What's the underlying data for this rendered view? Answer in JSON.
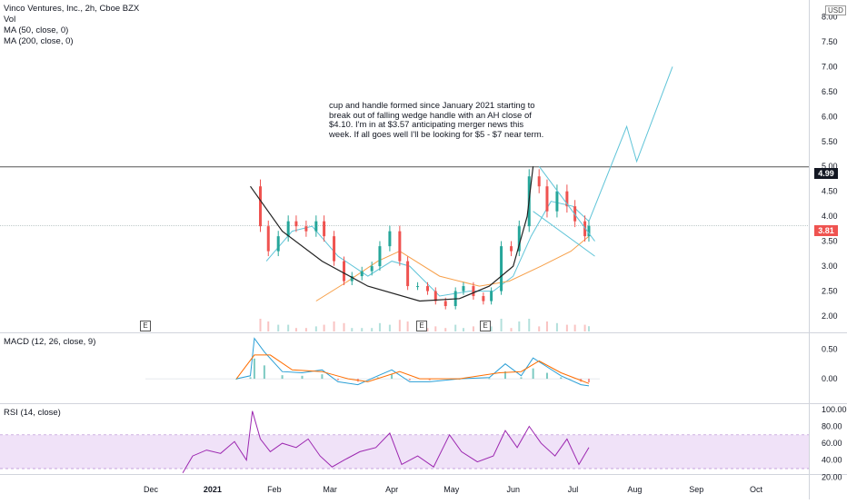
{
  "header": {
    "title": "Vinco Ventures, Inc., 2h, Cboe BZX",
    "vol_label": "Vol",
    "ma50_label": "MA (50, close, 0)",
    "ma200_label": "MA (200, close, 0)",
    "currency": "USD"
  },
  "annotation": {
    "text": "cup and handle formed since January 2021 starting to break out of falling wedge handle with an AH close of $4.10. I'm in at $3.57 anticipating merger news this week. If all goes well I'll be looking for $5 - $7 near term."
  },
  "earnings_flag": "E",
  "price_tags": {
    "resistance": "4.99",
    "current": "3.81"
  },
  "macd": {
    "label": "MACD (12, 26, close, 9)"
  },
  "rsi": {
    "label": "RSI (14, close)"
  },
  "colors": {
    "candle_up": "#26a69a",
    "candle_down": "#ef5350",
    "ma50": "#5fc4d8",
    "ma200": "#f7a04a",
    "cup": "#222222",
    "projection": "#5fc4d8",
    "macd_line": "#2a9fd6",
    "signal_line": "#ff6d00",
    "rsi_line": "#9c27b0",
    "rsi_band": "#e9d5f5"
  },
  "chart_data": [
    {
      "type": "candlestick",
      "title": "Vinco Ventures, Inc., 2h, Cboe BZX",
      "x_tick_labels": [
        "Dec",
        "2021",
        "Feb",
        "Mar",
        "Apr",
        "May",
        "Jun",
        "Jul",
        "Aug",
        "Sep",
        "Oct"
      ],
      "y_tick_labels": [
        "2.00",
        "2.50",
        "3.00",
        "3.50",
        "4.00",
        "4.50",
        "5.00",
        "5.50",
        "6.00",
        "6.50",
        "7.00",
        "7.50",
        "8.00"
      ],
      "ylim": [
        1.8,
        8.3
      ],
      "horizontal_lines": [
        4.99,
        3.81
      ],
      "earnings_dates": [
        "2020-12-16",
        "2021-04-01",
        "2021-05-27"
      ],
      "close_series": [
        [
          "2021-01-20",
          4.6
        ],
        [
          "2021-01-25",
          3.8
        ],
        [
          "2021-01-29",
          3.3
        ],
        [
          "2021-02-03",
          3.6
        ],
        [
          "2021-02-08",
          3.9
        ],
        [
          "2021-02-12",
          3.8
        ],
        [
          "2021-02-17",
          3.7
        ],
        [
          "2021-02-22",
          3.9
        ],
        [
          "2021-02-26",
          3.6
        ],
        [
          "2021-03-03",
          3.1
        ],
        [
          "2021-03-08",
          2.7
        ],
        [
          "2021-03-12",
          2.8
        ],
        [
          "2021-03-17",
          2.9
        ],
        [
          "2021-03-22",
          3.0
        ],
        [
          "2021-03-26",
          3.4
        ],
        [
          "2021-03-31",
          3.7
        ],
        [
          "2021-04-05",
          3.1
        ],
        [
          "2021-04-09",
          2.6
        ],
        [
          "2021-04-14",
          2.6
        ],
        [
          "2021-04-19",
          2.5
        ],
        [
          "2021-04-23",
          2.3
        ],
        [
          "2021-04-28",
          2.2
        ],
        [
          "2021-05-03",
          2.5
        ],
        [
          "2021-05-07",
          2.6
        ],
        [
          "2021-05-12",
          2.4
        ],
        [
          "2021-05-17",
          2.3
        ],
        [
          "2021-05-21",
          2.5
        ],
        [
          "2021-05-26",
          3.4
        ],
        [
          "2021-05-31",
          3.3
        ],
        [
          "2021-06-04",
          3.8
        ],
        [
          "2021-06-09",
          4.8
        ],
        [
          "2021-06-14",
          4.6
        ],
        [
          "2021-06-18",
          4.1
        ],
        [
          "2021-06-23",
          4.5
        ],
        [
          "2021-06-28",
          4.2
        ],
        [
          "2021-07-02",
          3.9
        ],
        [
          "2021-07-07",
          3.6
        ],
        [
          "2021-07-09",
          3.81
        ]
      ],
      "ma50": [
        [
          "2021-01-28",
          3.1
        ],
        [
          "2021-02-10",
          3.7
        ],
        [
          "2021-02-20",
          3.8
        ],
        [
          "2021-03-05",
          3.2
        ],
        [
          "2021-03-20",
          2.8
        ],
        [
          "2021-04-01",
          3.1
        ],
        [
          "2021-04-10",
          3.0
        ],
        [
          "2021-04-25",
          2.4
        ],
        [
          "2021-05-10",
          2.5
        ],
        [
          "2021-05-22",
          2.5
        ],
        [
          "2021-06-01",
          2.8
        ],
        [
          "2021-06-10",
          3.6
        ],
        [
          "2021-06-20",
          4.3
        ],
        [
          "2021-07-01",
          4.2
        ],
        [
          "2021-07-09",
          3.9
        ]
      ],
      "ma200": [
        [
          "2021-02-22",
          2.3
        ],
        [
          "2021-03-10",
          2.7
        ],
        [
          "2021-03-25",
          3.1
        ],
        [
          "2021-04-05",
          3.3
        ],
        [
          "2021-04-25",
          2.8
        ],
        [
          "2021-05-15",
          2.6
        ],
        [
          "2021-05-30",
          2.7
        ],
        [
          "2021-06-15",
          3.0
        ],
        [
          "2021-06-30",
          3.3
        ],
        [
          "2021-07-09",
          3.6
        ]
      ],
      "cup_curve": [
        [
          "2021-01-20",
          4.6
        ],
        [
          "2021-02-05",
          3.7
        ],
        [
          "2021-02-25",
          3.1
        ],
        [
          "2021-03-20",
          2.6
        ],
        [
          "2021-04-15",
          2.3
        ],
        [
          "2021-05-05",
          2.35
        ],
        [
          "2021-05-20",
          2.6
        ],
        [
          "2021-06-01",
          3.0
        ],
        [
          "2021-06-08",
          4.0
        ],
        [
          "2021-06-11",
          5.0
        ]
      ],
      "wedge_upper": [
        [
          "2021-06-14",
          5.0
        ],
        [
          "2021-07-12",
          3.5
        ]
      ],
      "wedge_lower": [
        [
          "2021-06-11",
          4.1
        ],
        [
          "2021-07-12",
          3.2
        ]
      ],
      "projection_path": [
        [
          "2021-07-09",
          3.9
        ],
        [
          "2021-07-28",
          5.8
        ],
        [
          "2021-08-02",
          5.1
        ],
        [
          "2021-08-20",
          7.0
        ]
      ]
    },
    {
      "type": "line",
      "title": "MACD (12, 26, close, 9)",
      "y_tick_labels": [
        "0.00",
        "0.50"
      ],
      "ylim": [
        -0.35,
        0.75
      ],
      "series": [
        {
          "values": [
            [
              "2021-01-13",
              0.0
            ],
            [
              "2021-01-20",
              0.05
            ],
            [
              "2021-01-22",
              0.68
            ],
            [
              "2021-01-27",
              0.45
            ],
            [
              "2021-02-05",
              0.12
            ],
            [
              "2021-02-15",
              0.1
            ],
            [
              "2021-02-25",
              0.15
            ],
            [
              "2021-03-05",
              -0.05
            ],
            [
              "2021-03-15",
              -0.1
            ],
            [
              "2021-03-25",
              0.05
            ],
            [
              "2021-04-01",
              0.15
            ],
            [
              "2021-04-10",
              -0.05
            ],
            [
              "2021-04-20",
              -0.05
            ],
            [
              "2021-05-05",
              0.0
            ],
            [
              "2021-05-20",
              0.02
            ],
            [
              "2021-05-28",
              0.25
            ],
            [
              "2021-06-05",
              0.05
            ],
            [
              "2021-06-11",
              0.35
            ],
            [
              "2021-06-18",
              0.2
            ],
            [
              "2021-06-25",
              0.05
            ],
            [
              "2021-07-05",
              -0.1
            ],
            [
              "2021-07-09",
              -0.12
            ]
          ]
        },
        {
          "values": [
            [
              "2021-01-13",
              0.0
            ],
            [
              "2021-01-22",
              0.4
            ],
            [
              "2021-01-30",
              0.4
            ],
            [
              "2021-02-10",
              0.15
            ],
            [
              "2021-02-25",
              0.12
            ],
            [
              "2021-03-10",
              0.0
            ],
            [
              "2021-03-20",
              -0.05
            ],
            [
              "2021-04-05",
              0.12
            ],
            [
              "2021-04-15",
              0.0
            ],
            [
              "2021-05-05",
              0.0
            ],
            [
              "2021-05-25",
              0.1
            ],
            [
              "2021-06-05",
              0.12
            ],
            [
              "2021-06-14",
              0.3
            ],
            [
              "2021-06-25",
              0.1
            ],
            [
              "2021-07-09",
              -0.08
            ]
          ]
        }
      ]
    },
    {
      "type": "line",
      "title": "RSI (14, close)",
      "y_tick_labels": [
        "20.00",
        "40.00",
        "60.00",
        "80.00",
        "100.00"
      ],
      "ylim": [
        15,
        102
      ],
      "band": [
        30,
        70
      ],
      "values": [
        [
          "2020-12-17",
          25
        ],
        [
          "2020-12-22",
          45
        ],
        [
          "2020-12-29",
          52
        ],
        [
          "2021-01-05",
          48
        ],
        [
          "2021-01-12",
          62
        ],
        [
          "2021-01-18",
          40
        ],
        [
          "2021-01-21",
          98
        ],
        [
          "2021-01-25",
          65
        ],
        [
          "2021-01-30",
          50
        ],
        [
          "2021-02-05",
          60
        ],
        [
          "2021-02-12",
          55
        ],
        [
          "2021-02-18",
          65
        ],
        [
          "2021-02-24",
          45
        ],
        [
          "2021-03-02",
          32
        ],
        [
          "2021-03-08",
          40
        ],
        [
          "2021-03-16",
          50
        ],
        [
          "2021-03-24",
          55
        ],
        [
          "2021-03-31",
          72
        ],
        [
          "2021-04-06",
          35
        ],
        [
          "2021-04-14",
          45
        ],
        [
          "2021-04-22",
          32
        ],
        [
          "2021-04-30",
          70
        ],
        [
          "2021-05-06",
          50
        ],
        [
          "2021-05-14",
          38
        ],
        [
          "2021-05-22",
          45
        ],
        [
          "2021-05-28",
          75
        ],
        [
          "2021-06-03",
          55
        ],
        [
          "2021-06-09",
          80
        ],
        [
          "2021-06-15",
          60
        ],
        [
          "2021-06-22",
          45
        ],
        [
          "2021-06-28",
          65
        ],
        [
          "2021-07-04",
          35
        ],
        [
          "2021-07-09",
          55
        ]
      ]
    }
  ]
}
